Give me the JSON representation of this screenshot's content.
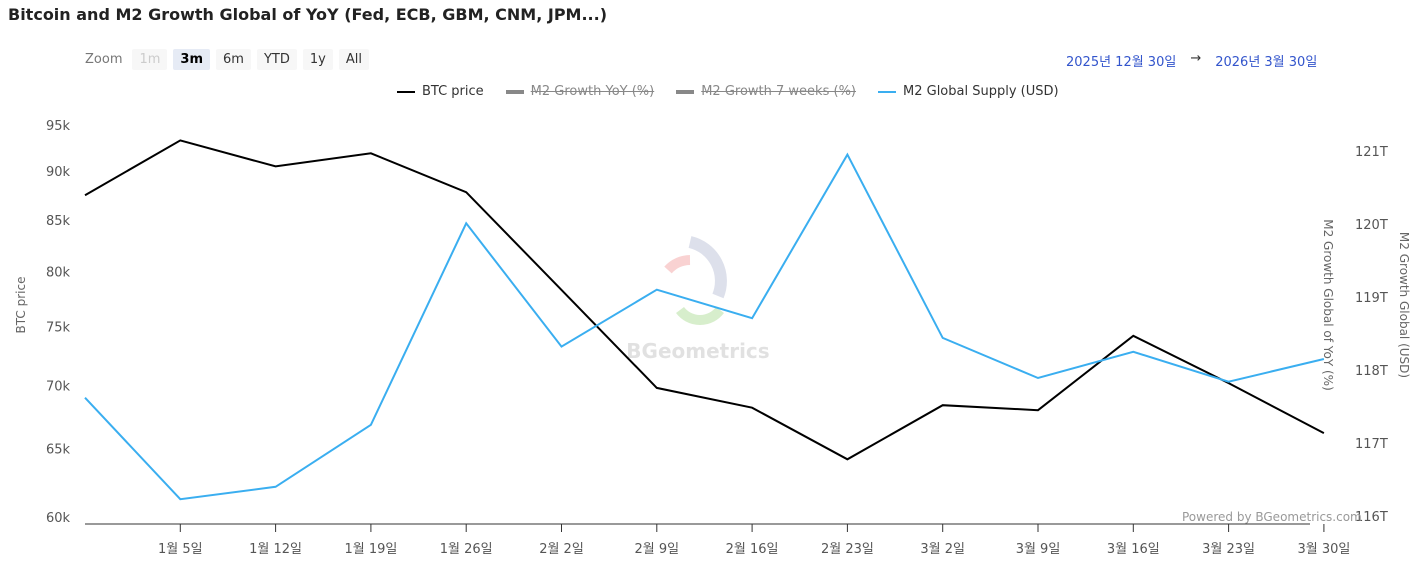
{
  "title": "Bitcoin and M2 Growth Global of YoY (Fed, ECB, GBM, CNM, JPM...)",
  "zoom": {
    "label": "Zoom",
    "buttons": [
      "1m",
      "3m",
      "6m",
      "YTD",
      "1y",
      "All"
    ],
    "selected": "3m",
    "disabled": "1m"
  },
  "range": {
    "from": "2025년 12월 30일",
    "arrow": "→",
    "to": "2026년 3월 30일"
  },
  "legend": [
    {
      "name": "BTC price",
      "color": "#000000",
      "visible": true
    },
    {
      "name": "M2 Growth YoY (%)",
      "color": "#888888",
      "visible": false
    },
    {
      "name": "M2 Growth 7 weeks (%)",
      "color": "#888888",
      "visible": false
    },
    {
      "name": "M2 Global Supply (USD)",
      "color": "#3aaef0",
      "visible": true
    }
  ],
  "watermark": "BGeometrics",
  "powered": "Powered by BGeometrics.com",
  "chart_data": {
    "type": "line",
    "title": "Bitcoin and M2 Growth Global of YoY (Fed, ECB, GBM, CNM, JPM...)",
    "x_ticks": [
      "1월 5일",
      "1월 12일",
      "1월 19일",
      "1월 26일",
      "2월 2일",
      "2월 9일",
      "2월 16일",
      "2월 23일",
      "3월 2일",
      "3월 9일",
      "3월 16일",
      "3월 23일",
      "3월 30일"
    ],
    "x_dates": [
      "12/29",
      "1/5",
      "1/12",
      "1/19",
      "1/26",
      "2/2",
      "2/9",
      "2/16",
      "2/23",
      "3/2",
      "3/9",
      "3/16",
      "3/23",
      "3/30"
    ],
    "y_left": {
      "label": "BTC price",
      "ticks": [
        "60k",
        "65k",
        "70k",
        "75k",
        "80k",
        "85k",
        "90k",
        "95k"
      ],
      "tick_values": [
        60000,
        65000,
        70000,
        75000,
        80000,
        85000,
        90000,
        95000
      ],
      "range": [
        60000,
        95000
      ],
      "scale": "log"
    },
    "y_right_1": {
      "label": "M2 Growth Global of YoY (%)"
    },
    "y_right_2": {
      "label": "M2 Growth Global (USD)",
      "ticks": [
        "116T",
        "117T",
        "118T",
        "119T",
        "120T",
        "121T"
      ],
      "tick_values": [
        116,
        117,
        118,
        119,
        120,
        121
      ],
      "range": [
        116,
        121.5
      ]
    },
    "series": [
      {
        "name": "BTC price",
        "axis": "left",
        "color": "#000000",
        "values": [
          87500,
          93300,
          90500,
          91900,
          87800,
          78300,
          69800,
          68200,
          64200,
          68400,
          68000,
          74200,
          70200,
          66200
        ]
      },
      {
        "name": "M2 Global Supply (USD)",
        "axis": "right",
        "color": "#3aaef0",
        "values": [
          117.62,
          116.23,
          116.4,
          117.25,
          120.01,
          118.32,
          119.1,
          118.71,
          120.95,
          118.44,
          117.89,
          118.25,
          117.84,
          118.15
        ]
      }
    ]
  }
}
